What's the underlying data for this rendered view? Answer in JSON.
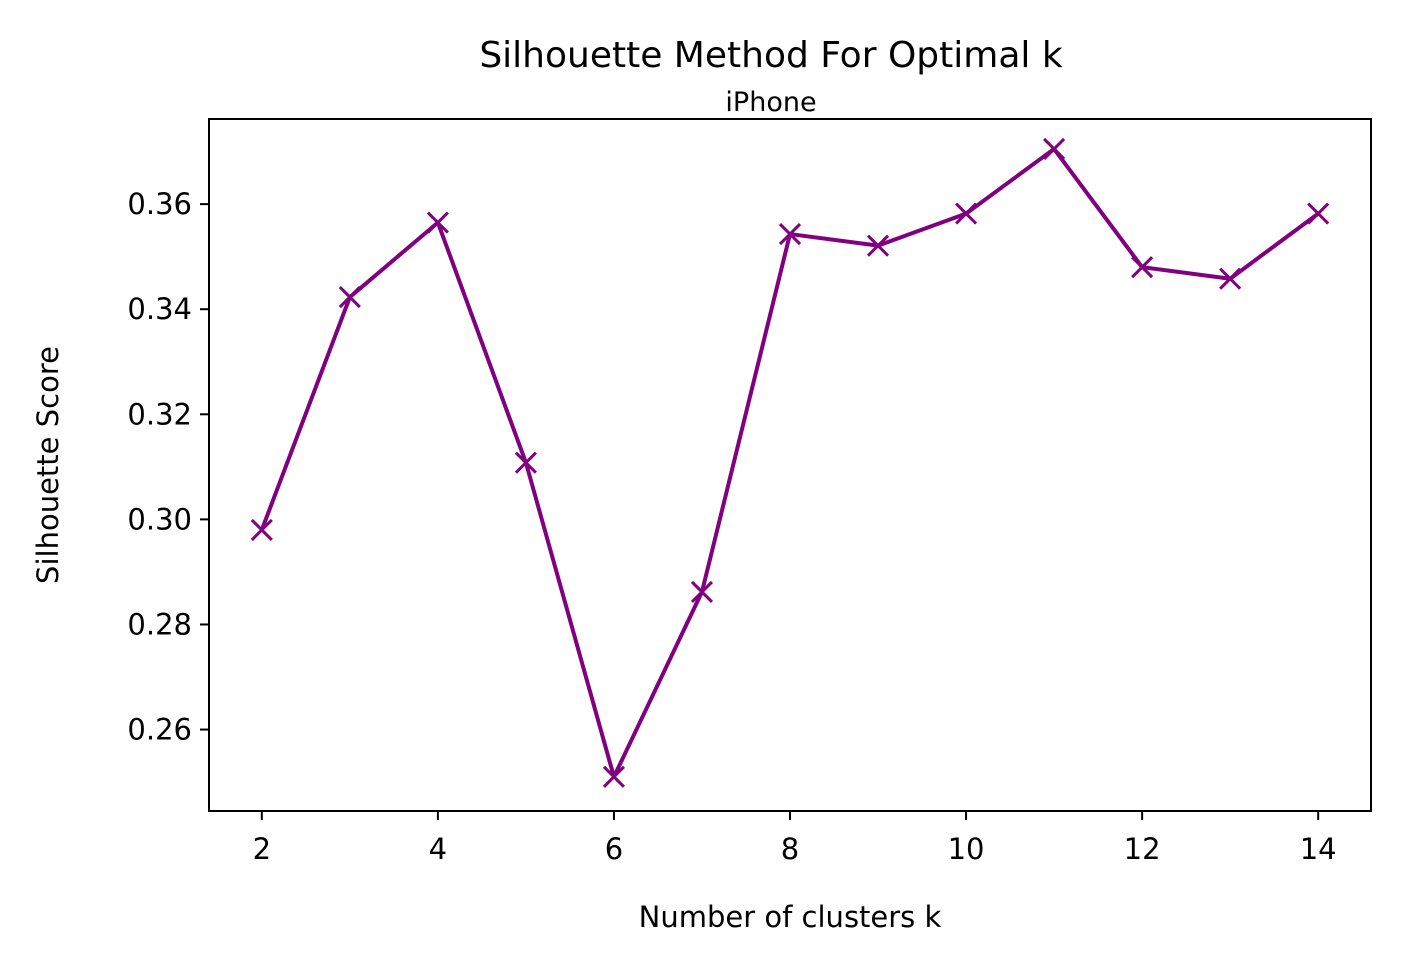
{
  "chart_data": {
    "type": "line",
    "title": "Silhouette Method For Optimal k",
    "subtitle": "iPhone",
    "xlabel": "Number of clusters k",
    "ylabel": "Silhouette Score",
    "x": [
      2,
      3,
      4,
      5,
      6,
      7,
      8,
      9,
      10,
      11,
      12,
      13,
      14
    ],
    "series": [
      {
        "values": [
          0.298,
          0.3423,
          0.3565,
          0.3108,
          0.251,
          0.2862,
          0.3543,
          0.3521,
          0.3582,
          0.3705,
          0.348,
          0.3458,
          0.3582
        ]
      }
    ],
    "xlim": [
      1.4,
      14.6
    ],
    "ylim": [
      0.2445,
      0.3762
    ],
    "xticks": [
      2,
      4,
      6,
      8,
      10,
      12,
      14
    ],
    "xtick_labels": [
      "2",
      "4",
      "6",
      "8",
      "10",
      "12",
      "14"
    ],
    "yticks": [
      0.26,
      0.28,
      0.3,
      0.32,
      0.34,
      0.36
    ],
    "ytick_labels": [
      "0.26",
      "0.28",
      "0.30",
      "0.32",
      "0.34",
      "0.36"
    ],
    "marker": "x",
    "line_color": "#800080",
    "grid": false,
    "legend": false
  }
}
